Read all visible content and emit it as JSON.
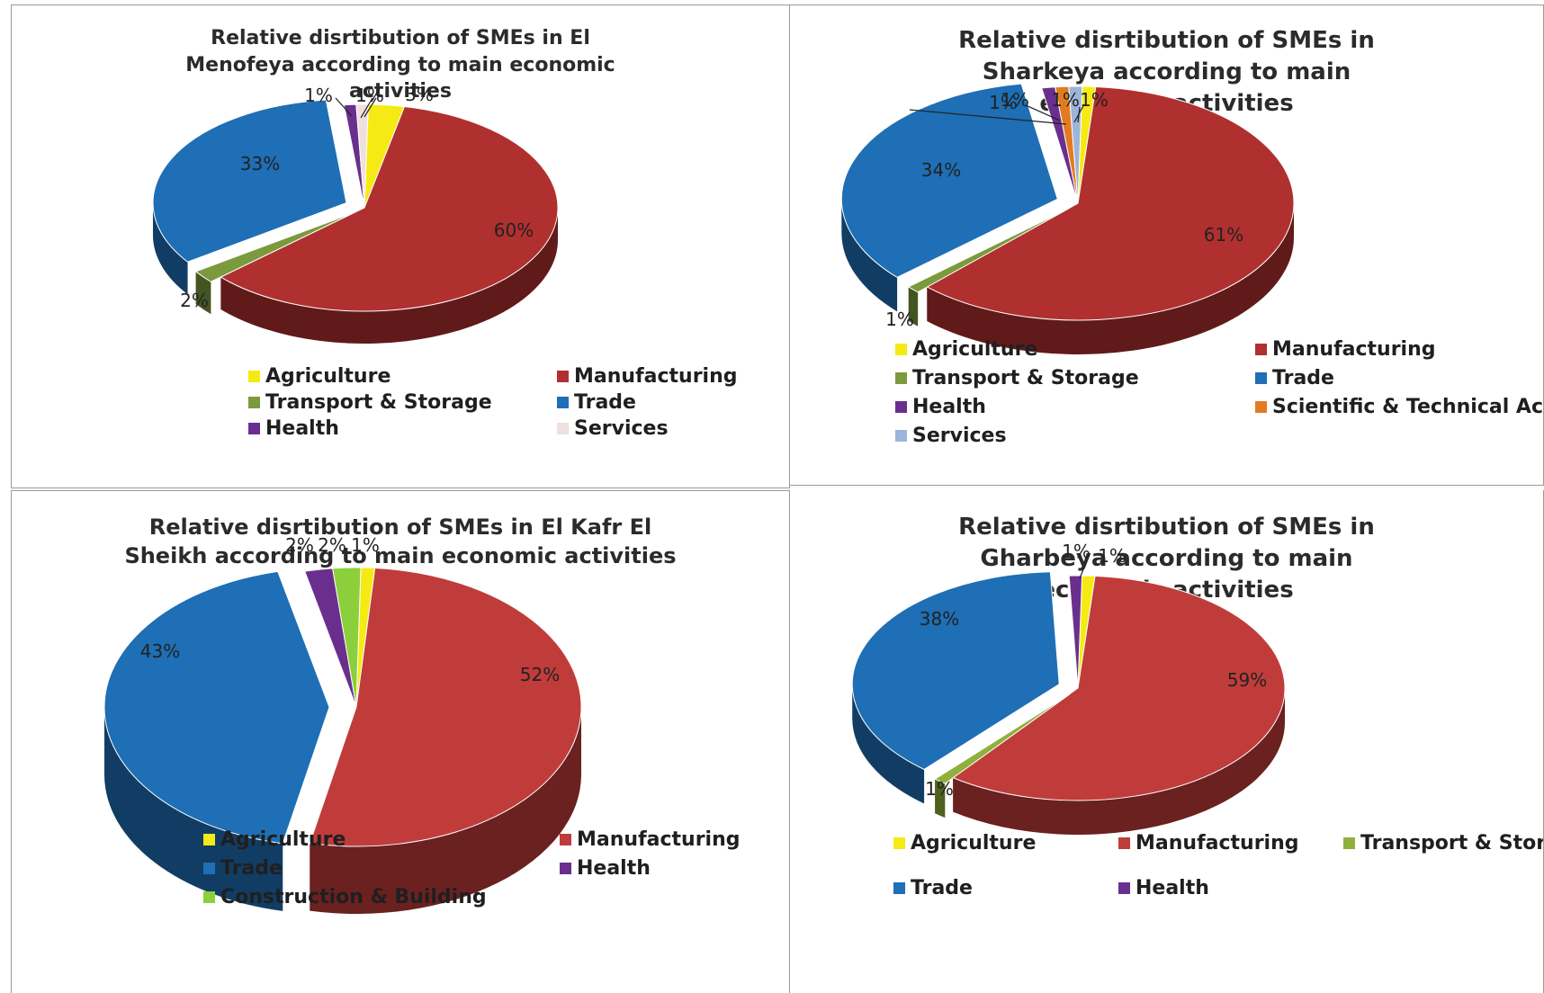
{
  "chart_data": [
    {
      "type": "pie",
      "title": "Relative disrtibution of SMEs in El Menofeya according to main economic activities",
      "categories": [
        "Agriculture",
        "Manufacturing",
        "Transport & Storage",
        "Trade",
        "Health",
        "Services"
      ],
      "values": [
        3,
        60,
        2,
        33,
        1,
        1
      ],
      "value_labels": [
        "3%",
        "60%",
        "2%",
        "33%",
        "1%",
        "1%"
      ],
      "colors": [
        "#f5ea14",
        "#b0302f",
        "#7b9a3d",
        "#1e6fb5",
        "#6a2f8e",
        "#efdfdf"
      ],
      "legend": "bottom"
    },
    {
      "type": "pie",
      "title": "Relative disrtibution of SMEs in Sharkeya according to main economic activities",
      "categories": [
        "Agriculture",
        "Manufacturing",
        "Transport & Storage",
        "Trade",
        "Health",
        "Scientific & Technical Act.",
        "Services"
      ],
      "values": [
        1,
        61,
        1,
        34,
        1,
        1,
        1
      ],
      "value_labels": [
        "1%",
        "61%",
        "1%",
        "34%",
        "1%",
        "1%",
        "1%"
      ],
      "colors": [
        "#f5ea14",
        "#b0302f",
        "#7b9a3d",
        "#1e6fb5",
        "#6a2f8e",
        "#e27b22",
        "#9cb5d8"
      ],
      "legend": "bottom"
    },
    {
      "type": "pie",
      "title": "Relative disrtibution of SMEs in El Kafr El Sheikh according to main economic activities",
      "categories": [
        "Agriculture",
        "Manufacturing",
        "Trade",
        "Health",
        "Construction & Building"
      ],
      "values": [
        1,
        52,
        43,
        2,
        2
      ],
      "value_labels": [
        "1%",
        "52%",
        "43%",
        "2%",
        "2%"
      ],
      "colors": [
        "#f5ea14",
        "#c03c3b",
        "#1e6fb5",
        "#6a2f8e",
        "#8ccf3c"
      ],
      "legend": "bottom"
    },
    {
      "type": "pie",
      "title": "Relative disrtibution of SMEs in Gharbeya according to main economic activities",
      "categories": [
        "Agriculture",
        "Manufacturing",
        "Transport & Storage",
        "Trade",
        "Health"
      ],
      "values": [
        1,
        59,
        1,
        38,
        1
      ],
      "value_labels": [
        "1%",
        "59%",
        "1%",
        "38%",
        "1%"
      ],
      "colors": [
        "#f5ea14",
        "#c03c3b",
        "#8fb03c",
        "#1e6fb5",
        "#6a2f8e"
      ],
      "legend": "bottom"
    }
  ]
}
